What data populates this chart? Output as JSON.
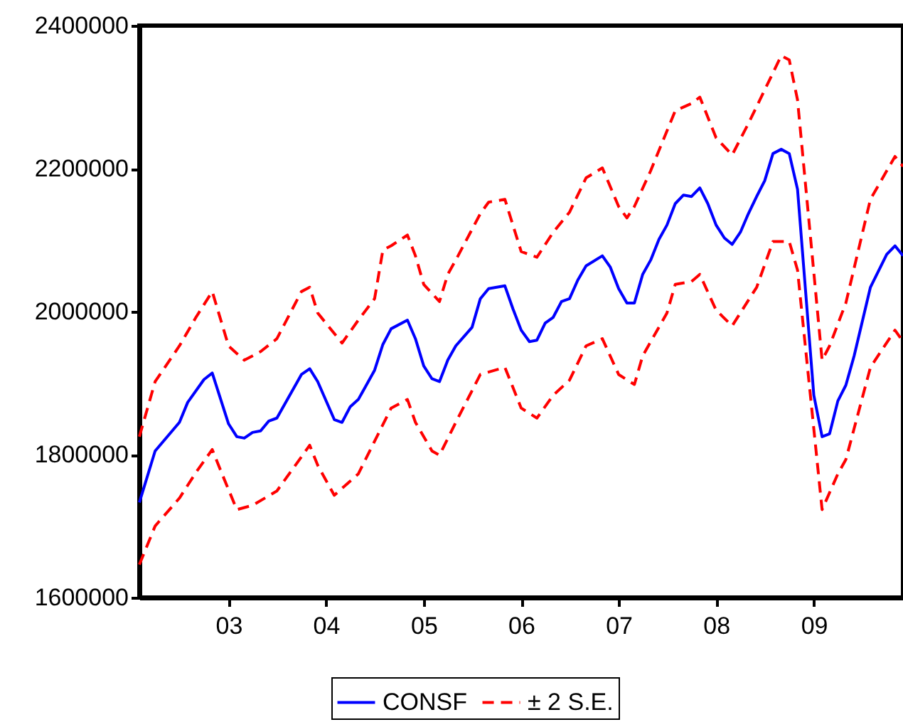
{
  "chart_data": {
    "type": "line",
    "xlim": [
      "2002-02",
      "2009-12"
    ],
    "xticks": [
      {
        "value": "2003-01",
        "label": "03"
      },
      {
        "value": "2004-01",
        "label": "04"
      },
      {
        "value": "2005-01",
        "label": "05"
      },
      {
        "value": "2006-01",
        "label": "06"
      },
      {
        "value": "2007-01",
        "label": "07"
      },
      {
        "value": "2008-01",
        "label": "08"
      },
      {
        "value": "2009-01",
        "label": "09"
      }
    ],
    "ylim": [
      1600000,
      2400000
    ],
    "yticks": [
      1600000,
      1800000,
      2000000,
      2200000,
      2400000
    ],
    "grid": false,
    "legend": "bottom",
    "series": [
      {
        "name": "CONSF",
        "color": "#0000ff",
        "line_style": "solid",
        "x": [
          "2002-02",
          "2002-04",
          "2002-07",
          "2002-08",
          "2002-10",
          "2002-11",
          "2003-01",
          "2003-02",
          "2003-03",
          "2003-04",
          "2003-05",
          "2003-06",
          "2003-07",
          "2003-10",
          "2003-11",
          "2003-12",
          "2004-02",
          "2004-03",
          "2004-04",
          "2004-05",
          "2004-07",
          "2004-08",
          "2004-09",
          "2004-11",
          "2004-12",
          "2005-01",
          "2005-02",
          "2005-03",
          "2005-04",
          "2005-05",
          "2005-07",
          "2005-08",
          "2005-09",
          "2005-11",
          "2005-12",
          "2006-01",
          "2006-02",
          "2006-03",
          "2006-04",
          "2006-05",
          "2006-06",
          "2006-07",
          "2006-08",
          "2006-09",
          "2006-11",
          "2006-12",
          "2007-01",
          "2007-02",
          "2007-03",
          "2007-04",
          "2007-05",
          "2007-06",
          "2007-07",
          "2007-08",
          "2007-09",
          "2007-10",
          "2007-11",
          "2007-12",
          "2008-01",
          "2008-02",
          "2008-03",
          "2008-04",
          "2008-05",
          "2008-06",
          "2008-07",
          "2008-08",
          "2008-09",
          "2008-10",
          "2008-11",
          "2009-01",
          "2009-02",
          "2009-03",
          "2009-04",
          "2009-05",
          "2009-06",
          "2009-08",
          "2009-10",
          "2009-11",
          "2009-12"
        ],
        "values": [
          1733000,
          1805000,
          1845000,
          1873000,
          1905000,
          1914000,
          1843000,
          1825000,
          1823000,
          1831000,
          1833000,
          1847000,
          1851000,
          1912000,
          1920000,
          1902000,
          1849000,
          1845000,
          1867000,
          1877000,
          1918000,
          1954000,
          1976000,
          1988000,
          1962000,
          1924000,
          1906000,
          1902000,
          1932000,
          1952000,
          1978000,
          2018000,
          2032000,
          2036000,
          2004000,
          1974000,
          1958000,
          1960000,
          1984000,
          1992000,
          2014000,
          2018000,
          2044000,
          2064000,
          2078000,
          2062000,
          2032000,
          2012000,
          2012000,
          2052000,
          2072000,
          2101000,
          2121000,
          2151000,
          2163000,
          2161000,
          2173000,
          2151000,
          2121000,
          2103000,
          2094000,
          2111000,
          2137000,
          2161000,
          2183000,
          2221000,
          2227000,
          2221000,
          2171000,
          1883000,
          1825000,
          1829000,
          1875000,
          1897000,
          1938000,
          2034000,
          2080000,
          2092000,
          2078000
        ]
      },
      {
        "name": "± 2 S.E.",
        "color": "#ff0000",
        "line_style": "dashed",
        "x": [
          "2002-02",
          "2002-04",
          "2002-07",
          "2002-09",
          "2002-11",
          "2003-01",
          "2003-03",
          "2003-05",
          "2003-07",
          "2003-10",
          "2003-11",
          "2003-12",
          "2004-03",
          "2004-05",
          "2004-07",
          "2004-08",
          "2004-09",
          "2004-11",
          "2004-12",
          "2005-01",
          "2005-03",
          "2005-04",
          "2005-05",
          "2005-08",
          "2005-09",
          "2005-11",
          "2006-01",
          "2006-03",
          "2006-05",
          "2006-07",
          "2006-09",
          "2006-11",
          "2007-01",
          "2007-02",
          "2007-03",
          "2007-05",
          "2007-08",
          "2007-10",
          "2007-11",
          "2008-01",
          "2008-03",
          "2008-05",
          "2008-07",
          "2008-09",
          "2008-10",
          "2008-11",
          "2009-02",
          "2009-03",
          "2009-05",
          "2009-08",
          "2009-11",
          "2009-12"
        ],
        "values": [
          1825000,
          1902000,
          1952000,
          1992000,
          2028000,
          1952000,
          1932000,
          1944000,
          1962000,
          2028000,
          2034000,
          1998000,
          1956000,
          1988000,
          2018000,
          2086000,
          2092000,
          2107000,
          2078000,
          2038000,
          2014000,
          2052000,
          2072000,
          2137000,
          2153000,
          2157000,
          2084000,
          2076000,
          2111000,
          2139000,
          2187000,
          2201000,
          2147000,
          2131000,
          2147000,
          2197000,
          2281000,
          2291000,
          2300000,
          2243000,
          2219000,
          2263000,
          2310000,
          2358000,
          2352000,
          2296000,
          1932000,
          1952000,
          2012000,
          2157000,
          2217000,
          2203000
        ]
      },
      {
        "color": "#ff0000",
        "line_style": "dashed",
        "x": [
          "2002-02",
          "2002-04",
          "2002-07",
          "2002-09",
          "2002-11",
          "2002-12",
          "2003-02",
          "2003-04",
          "2003-07",
          "2003-11",
          "2003-12",
          "2004-02",
          "2004-05",
          "2004-09",
          "2004-11",
          "2004-12",
          "2005-02",
          "2005-03",
          "2005-05",
          "2005-08",
          "2005-11",
          "2006-01",
          "2006-03",
          "2006-05",
          "2006-07",
          "2006-09",
          "2006-11",
          "2007-01",
          "2007-03",
          "2007-04",
          "2007-07",
          "2007-08",
          "2007-10",
          "2007-11",
          "2008-01",
          "2008-03",
          "2008-06",
          "2008-08",
          "2008-10",
          "2008-11",
          "2009-02",
          "2009-04",
          "2009-05",
          "2009-08",
          "2009-11",
          "2009-12"
        ],
        "values": [
          1646000,
          1700000,
          1739000,
          1775000,
          1807000,
          1779000,
          1723000,
          1729000,
          1749000,
          1813000,
          1785000,
          1743000,
          1773000,
          1865000,
          1877000,
          1845000,
          1805000,
          1799000,
          1845000,
          1912000,
          1922000,
          1865000,
          1851000,
          1883000,
          1904000,
          1952000,
          1962000,
          1912000,
          1898000,
          1938000,
          1998000,
          2038000,
          2042000,
          2052000,
          2002000,
          1980000,
          2034000,
          2098000,
          2098000,
          2058000,
          1723000,
          1773000,
          1793000,
          1922000,
          1974000,
          1958000
        ]
      }
    ]
  }
}
